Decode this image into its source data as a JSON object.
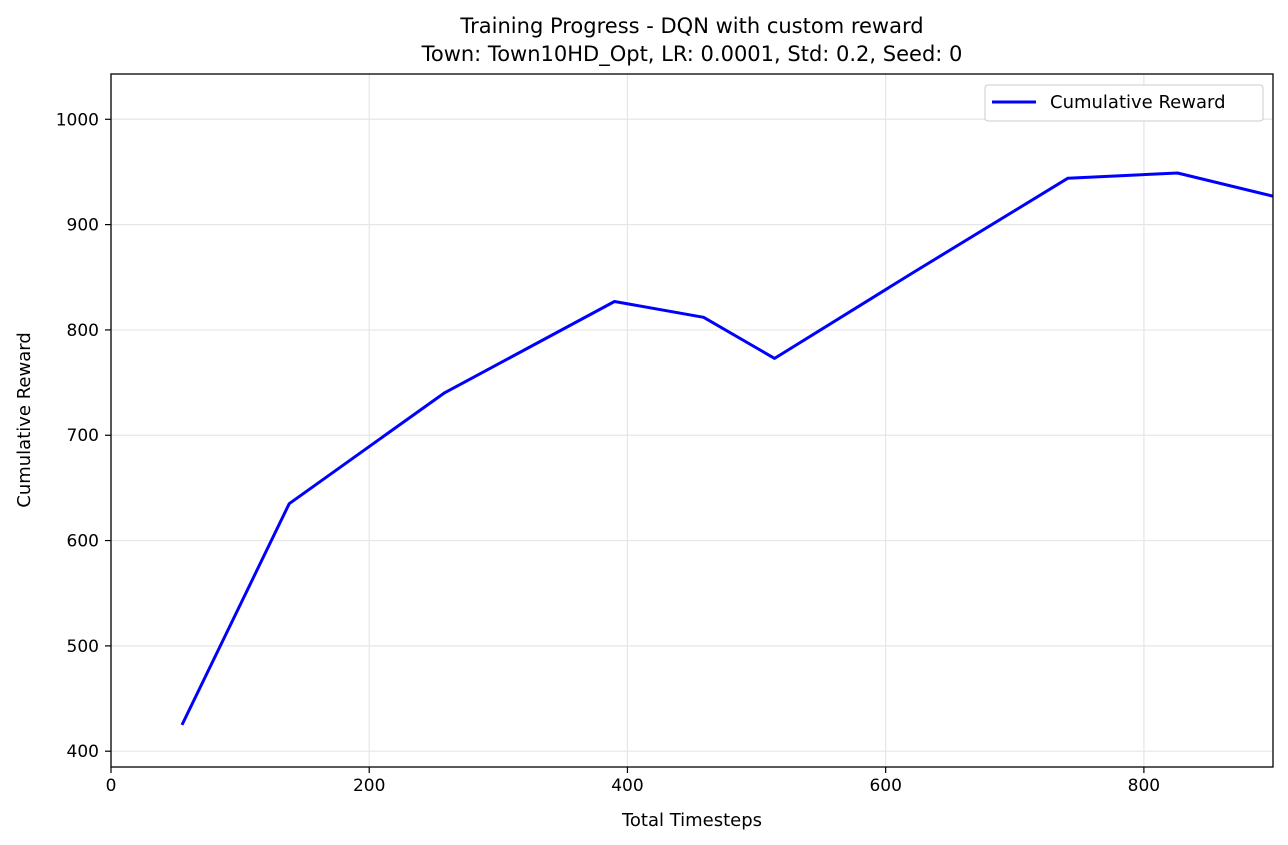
{
  "chart_data": {
    "type": "line",
    "title": "Training Progress - DQN with custom reward",
    "subtitle": "Town: Town10HD_Opt, LR: 0.0001, Std: 0.2, Seed: 0",
    "xlabel": "Total Timesteps",
    "ylabel": "Cumulative Reward",
    "xlim": [
      0,
      900
    ],
    "ylim": [
      385,
      1043
    ],
    "xticks": [
      0,
      200,
      400,
      600,
      800
    ],
    "yticks": [
      400,
      500,
      600,
      700,
      800,
      900,
      1000
    ],
    "grid": true,
    "legend_position": "top-right",
    "series": [
      {
        "name": "Cumulative Reward",
        "color": "#0000ff",
        "x": [
          55,
          138,
          258,
          390,
          459,
          514,
          622,
          741,
          826,
          900
        ],
        "y": [
          425,
          635,
          740,
          827,
          812,
          773,
          855,
          944,
          949,
          927
        ]
      }
    ]
  }
}
